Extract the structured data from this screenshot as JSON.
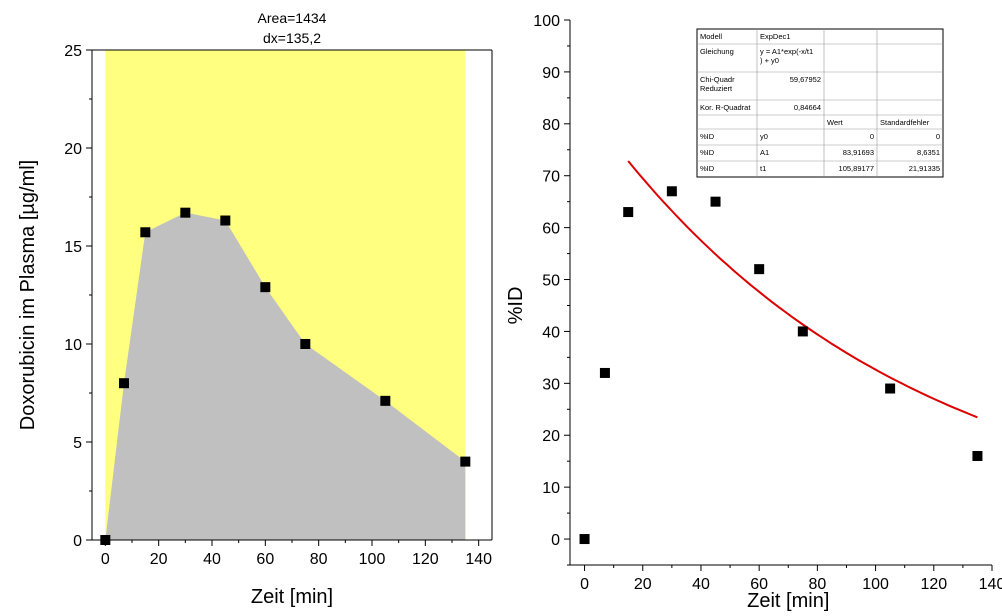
{
  "chart_data": [
    {
      "type": "area",
      "title_lines": [
        "Area=1434",
        "dx=135,2"
      ],
      "xlabel": "Zeit [min]",
      "ylabel": "Doxorubicin im Plasma [µg/ml]",
      "xlim": [
        -5,
        145
      ],
      "ylim": [
        0,
        25
      ],
      "x_ticks": [
        "0",
        "20",
        "40",
        "60",
        "80",
        "100",
        "120",
        "140"
      ],
      "y_ticks": [
        "0",
        "5",
        "10",
        "15",
        "20",
        "25"
      ],
      "background_color": "#ffff80",
      "fill_color": "#c0c0c0",
      "marker_color": "#000000",
      "x": [
        0,
        7,
        15,
        30,
        45,
        60,
        75,
        105,
        135
      ],
      "y": [
        0,
        8.0,
        15.7,
        16.7,
        16.3,
        12.9,
        10.0,
        7.1,
        4.0
      ]
    },
    {
      "type": "scatter",
      "xlabel": "Zeit [min]",
      "ylabel": "%ID",
      "xlim": [
        -5,
        140
      ],
      "ylim": [
        -5,
        100
      ],
      "x_ticks": [
        "0",
        "20",
        "40",
        "60",
        "80",
        "100",
        "120",
        "140"
      ],
      "y_ticks": [
        "0",
        "10",
        "20",
        "30",
        "40",
        "50",
        "60",
        "70",
        "80",
        "90",
        "100"
      ],
      "marker_color": "#000000",
      "fit_color": "#dd0000",
      "x": [
        0,
        7,
        15,
        30,
        45,
        60,
        75,
        105,
        135
      ],
      "y": [
        0,
        32,
        63,
        67,
        65,
        52,
        40,
        29,
        16
      ],
      "fit": {
        "model": "y = A1*exp(-x/t1) + y0",
        "y0": 0,
        "A1": 83.91693,
        "t1": 105.89177,
        "x_from": 15,
        "x_to": 135
      },
      "fit_table": [
        [
          "Modell",
          "ExpDec1",
          "",
          ""
        ],
        [
          "Gleichung",
          "y = A1*exp(-x/t1 ) + y0",
          "",
          ""
        ],
        [
          "Chi-Quadr Reduziert",
          "59,67952",
          "",
          ""
        ],
        [
          "Kor. R-Quadrat",
          "0,84664",
          "",
          ""
        ],
        [
          "",
          "",
          "Wert",
          "Standardfehler"
        ],
        [
          "%ID",
          "y0",
          "0",
          "0"
        ],
        [
          "%ID",
          "A1",
          "83,91693",
          "8,6351"
        ],
        [
          "%ID",
          "t1",
          "105,89177",
          "21,91335"
        ]
      ]
    }
  ]
}
